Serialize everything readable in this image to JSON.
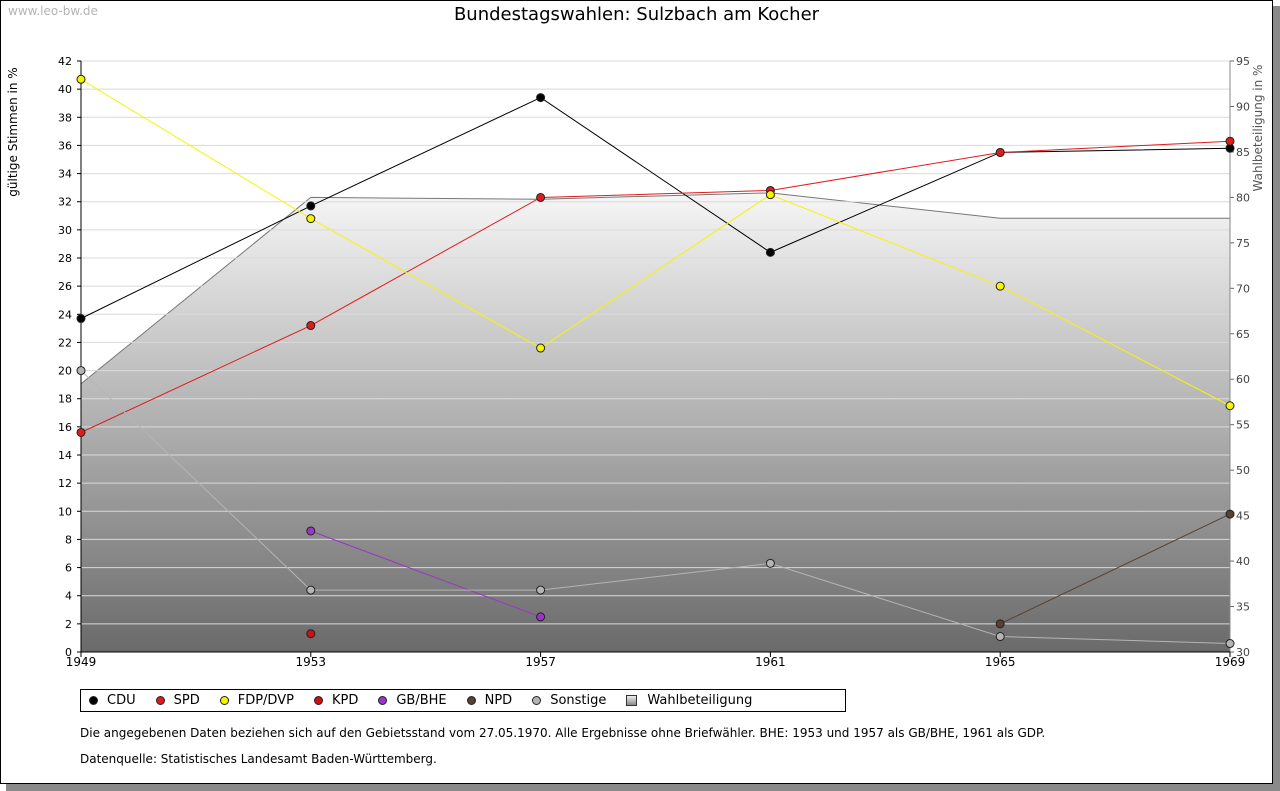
{
  "watermark": "www.leo-bw.de",
  "notes": {
    "scope": "Die angegebenen Daten beziehen sich auf den Gebietsstand vom 27.05.1970. Alle Ergebnisse ohne Briefwähler. BHE: 1953 und 1957 als GB/BHE, 1961 als GDP.",
    "source": "Datenquelle: Statistisches Landesamt Baden-Württemberg."
  },
  "chart_data": {
    "type": "line",
    "title": "Bundestagswahlen: Sulzbach am Kocher",
    "ylabel": "gültige Stimmen in %",
    "y2label": "Wahlbeteiligung in %",
    "x": [
      "1949",
      "1953",
      "1957",
      "1961",
      "1965",
      "1969"
    ],
    "ylim": [
      0,
      42
    ],
    "yticks": [
      0,
      2,
      4,
      6,
      8,
      10,
      12,
      14,
      16,
      18,
      20,
      22,
      24,
      26,
      28,
      30,
      32,
      34,
      36,
      38,
      40,
      42
    ],
    "y2lim": [
      30,
      95
    ],
    "y2ticks": [
      30,
      35,
      40,
      45,
      50,
      55,
      60,
      65,
      70,
      75,
      80,
      85,
      90,
      95
    ],
    "grid": true,
    "legend_position": "bottom",
    "series": [
      {
        "name": "CDU",
        "color": "#000000",
        "values": [
          23.7,
          31.7,
          39.4,
          28.4,
          35.5,
          35.8
        ]
      },
      {
        "name": "SPD",
        "color": "#e01b1b",
        "values": [
          15.6,
          23.2,
          32.3,
          32.8,
          35.5,
          36.3
        ]
      },
      {
        "name": "FDP/DVP",
        "color": "#f5f500",
        "values": [
          40.7,
          30.8,
          21.6,
          32.5,
          26.0,
          17.5
        ]
      },
      {
        "name": "KPD",
        "color": "#d01010",
        "values": [
          null,
          1.3,
          null,
          null,
          null,
          null
        ]
      },
      {
        "name": "GB/BHE",
        "color": "#9a35c8",
        "values": [
          null,
          8.6,
          2.5,
          null,
          null,
          null
        ]
      },
      {
        "name": "NPD",
        "color": "#5a4030",
        "values": [
          null,
          null,
          null,
          null,
          2.0,
          9.8
        ]
      },
      {
        "name": "Sonstige",
        "color": "#b4b4b4",
        "values": [
          20.0,
          4.4,
          4.4,
          6.3,
          1.1,
          0.6
        ]
      }
    ],
    "turnout": {
      "name": "Wahlbeteiligung",
      "values": [
        59.5,
        80.0,
        79.8,
        80.5,
        77.7,
        77.7
      ]
    }
  }
}
